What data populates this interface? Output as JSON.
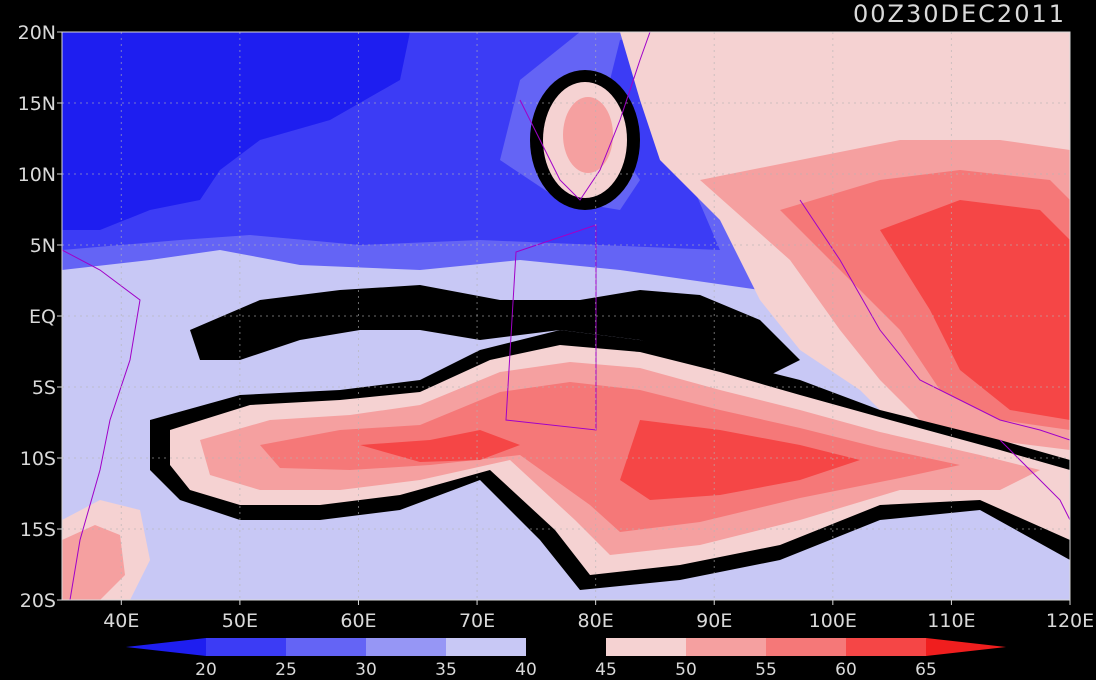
{
  "timestamp": "00Z30DEC2011",
  "axes": {
    "x_ticks": [
      "40E",
      "50E",
      "60E",
      "70E",
      "80E",
      "90E",
      "100E",
      "110E",
      "120E"
    ],
    "y_ticks": [
      "20N",
      "15N",
      "10N",
      "5N",
      "EQ",
      "5S",
      "10S",
      "15S",
      "20S"
    ],
    "lon_range": [
      35,
      120
    ],
    "lat_range": [
      -20,
      20
    ],
    "grid": true
  },
  "colorbar": {
    "labels": [
      "20",
      "25",
      "30",
      "35",
      "40",
      "45",
      "50",
      "55",
      "60",
      "65"
    ],
    "colors": [
      "#1e1ef0",
      "#3c3cf5",
      "#6464f5",
      "#9696f5",
      "#c8c8f5",
      "#000000",
      "#f5d2d2",
      "#f5a0a0",
      "#f57878",
      "#f54646",
      "#f01e1e"
    ]
  },
  "colors": {
    "coastline": "#a000c8",
    "grid": "#b4b4b4",
    "background": "#000000"
  }
}
